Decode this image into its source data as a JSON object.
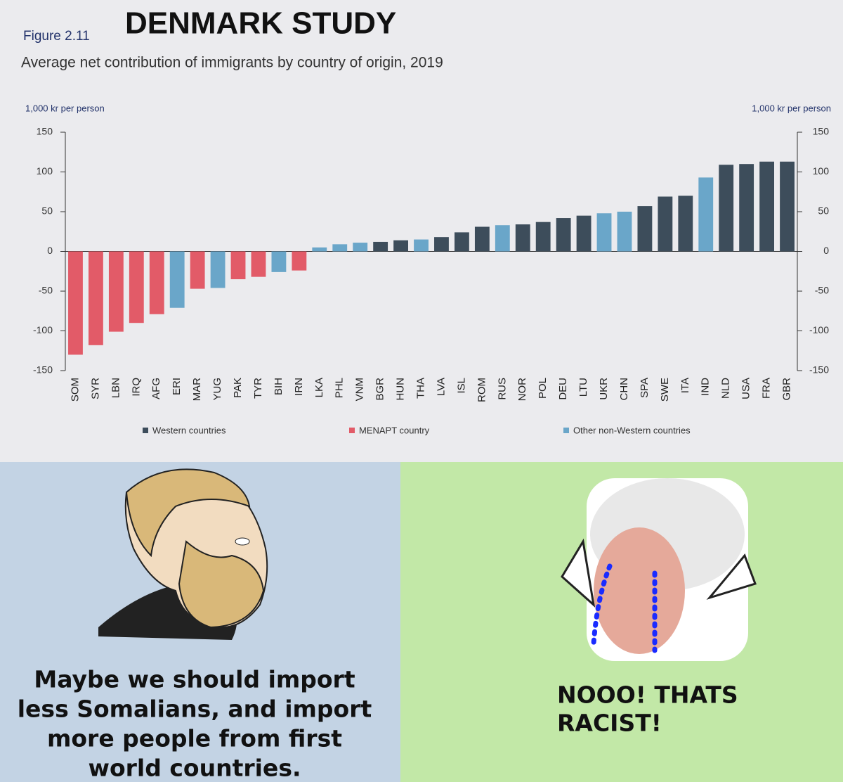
{
  "chart_data": {
    "type": "bar",
    "title": "DENMARK STUDY",
    "figure_label": "Figure 2.11",
    "subtitle": "Average net contribution of immigrants by country of origin, 2019",
    "ylabel": "1,000 kr per person",
    "y2label": "1,000 kr per person",
    "categories": [
      "SOM",
      "SYR",
      "LBN",
      "IRQ",
      "AFG",
      "ERI",
      "MAR",
      "YUG",
      "PAK",
      "TYR",
      "BIH",
      "IRN",
      "LKA",
      "PHL",
      "VNM",
      "BGR",
      "HUN",
      "THA",
      "LVA",
      "ISL",
      "ROM",
      "RUS",
      "NOR",
      "POL",
      "DEU",
      "LTU",
      "UKR",
      "CHN",
      "SPA",
      "SWE",
      "ITA",
      "IND",
      "NLD",
      "USA",
      "FRA",
      "GBR"
    ],
    "series": [
      {
        "name": "Western countries",
        "color": "#3d4d5b",
        "values": [
          null,
          null,
          null,
          null,
          null,
          null,
          null,
          null,
          null,
          null,
          null,
          null,
          null,
          null,
          null,
          12,
          14,
          null,
          18,
          24,
          31,
          null,
          34,
          37,
          42,
          45,
          null,
          null,
          57,
          69,
          70,
          null,
          109,
          110,
          113,
          113
        ]
      },
      {
        "name": "MENAPT country",
        "color": "#e25b68",
        "values": [
          -130,
          -118,
          -101,
          -90,
          -79,
          null,
          -47,
          null,
          -35,
          -32,
          null,
          -24,
          null,
          null,
          null,
          null,
          null,
          null,
          null,
          null,
          null,
          null,
          null,
          null,
          null,
          null,
          null,
          null,
          null,
          null,
          null,
          null,
          null,
          null,
          null,
          null
        ]
      },
      {
        "name": "Other non-Western countries",
        "color": "#6aa6c9",
        "values": [
          null,
          null,
          null,
          null,
          null,
          -71,
          null,
          -46,
          null,
          null,
          -26,
          null,
          5,
          9,
          11,
          null,
          null,
          15,
          null,
          null,
          null,
          33,
          null,
          null,
          null,
          null,
          48,
          50,
          null,
          null,
          null,
          93,
          null,
          null,
          null,
          null
        ]
      }
    ],
    "ylim": [
      -150,
      150
    ],
    "yticks": [
      -150,
      -100,
      -50,
      0,
      50,
      100,
      150
    ],
    "y2lim": [
      -150,
      150
    ],
    "y2ticks": [
      -150,
      -100,
      -50,
      0,
      50,
      100,
      150
    ],
    "grid": false
  },
  "meme": {
    "left_text": [
      "Maybe we should import",
      "less Somalians, and import",
      "more people from first",
      "world countries."
    ],
    "right_text": [
      "NOOO! THATS",
      "RACIST!"
    ]
  }
}
